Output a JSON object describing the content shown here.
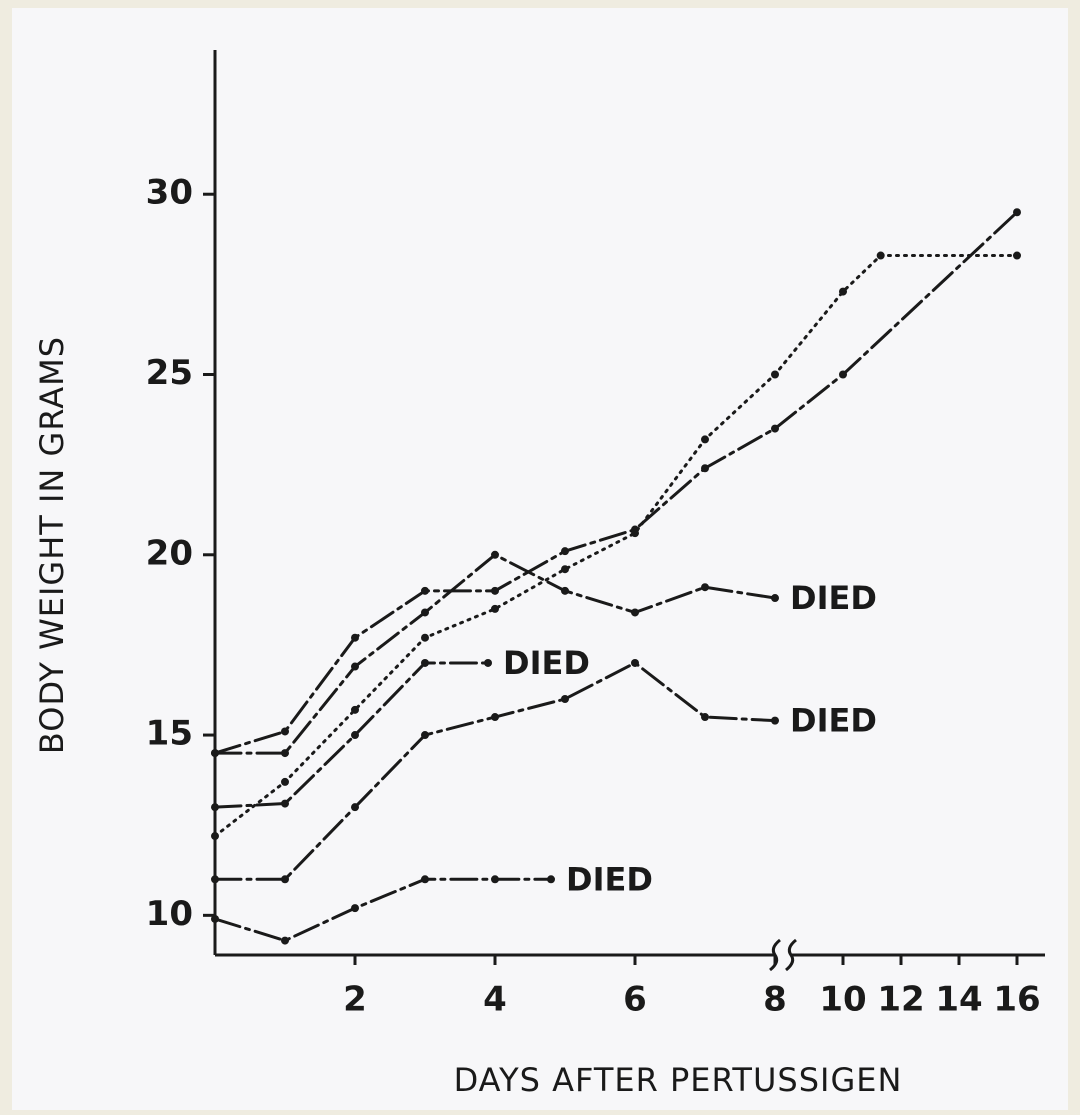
{
  "chart_data": {
    "type": "line",
    "ylabel": "BODY WEIGHT IN GRAMS",
    "xlabel": "DAYS AFTER PERTUSSIGEN",
    "xlim": [
      0,
      16
    ],
    "xticks": [
      2,
      4,
      6,
      8,
      10,
      12,
      14,
      16
    ],
    "ylim": [
      8.9,
      34
    ],
    "yticks": [
      10,
      15,
      20,
      25,
      30
    ],
    "color": "#1a1a1a",
    "series": [
      {
        "x": [
          0,
          1,
          2,
          3,
          4,
          5,
          6,
          7,
          8,
          10,
          16
        ],
        "values": [
          14.5,
          15.1,
          17.7,
          19.0,
          19.0,
          20.1,
          20.7,
          22.4,
          23.5,
          25.0,
          29.5
        ],
        "style": "solid"
      },
      {
        "x": [
          0,
          1,
          2,
          3,
          4,
          5,
          6,
          7,
          8
        ],
        "values": [
          14.5,
          14.5,
          16.9,
          18.4,
          20.0,
          19.0,
          18.4,
          19.1,
          18.8
        ],
        "style": "solid",
        "end_label": "DIED"
      },
      {
        "x": [
          0,
          1,
          2,
          3,
          3.9
        ],
        "values": [
          13.0,
          13.1,
          15.0,
          17.0,
          17.0
        ],
        "style": "solid",
        "end_label": "DIED"
      },
      {
        "x": [
          0,
          1,
          2,
          3,
          4,
          5,
          6,
          7,
          8,
          10,
          11.3,
          16
        ],
        "values": [
          12.2,
          13.7,
          15.7,
          17.7,
          18.5,
          19.6,
          20.6,
          23.2,
          25.0,
          27.3,
          28.3,
          28.3
        ],
        "style": "dotted"
      },
      {
        "x": [
          0,
          1,
          2,
          3,
          4,
          5,
          6,
          7,
          8
        ],
        "values": [
          11.0,
          11.0,
          13.0,
          15.0,
          15.5,
          16.0,
          17.0,
          15.5,
          15.4
        ],
        "style": "solid",
        "end_label": "DIED"
      },
      {
        "x": [
          0,
          1,
          2,
          3,
          4,
          4.8
        ],
        "values": [
          9.9,
          9.3,
          10.2,
          11.0,
          11.0,
          11.0
        ],
        "style": "solid",
        "end_label": "DIED"
      }
    ]
  }
}
